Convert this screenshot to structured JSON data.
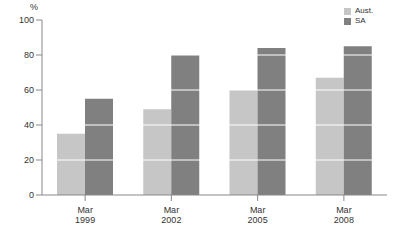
{
  "chart_data": {
    "type": "bar",
    "y_label": "%",
    "categories": [
      "Mar 1999",
      "Mar 2002",
      "Mar 2005",
      "Mar 2008"
    ],
    "series": [
      {
        "name": "Aust.",
        "color": "#c6c6c6",
        "values": [
          35,
          49,
          60,
          67
        ]
      },
      {
        "name": "SA",
        "color": "#808080",
        "values": [
          55,
          80,
          84,
          85
        ]
      }
    ],
    "ylim": [
      0,
      100
    ],
    "yticks": [
      0,
      20,
      40,
      60,
      80,
      100
    ],
    "grid": true,
    "legend": "upper right"
  }
}
